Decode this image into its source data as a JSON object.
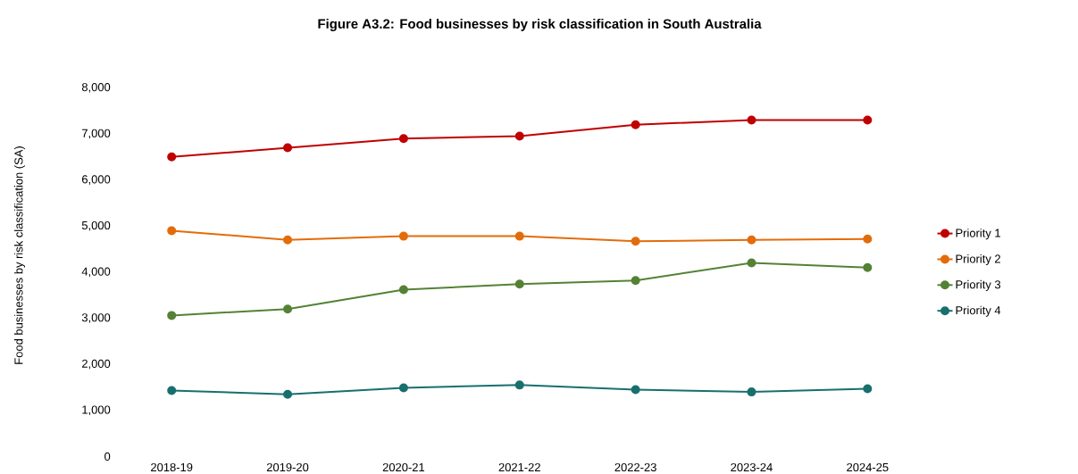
{
  "chart_data": {
    "type": "line",
    "title": "Figure A3.2:  Food businesses by risk classification in South Australia",
    "ylabel": "Food businesses by risk classification (SA)",
    "categories": [
      "2018-19",
      "2019-20",
      "2020-21",
      "2021-22",
      "2022-23",
      "2023-24",
      "2024-25"
    ],
    "series": [
      {
        "name": "Priority 1",
        "color": "#c00000",
        "values": [
          6500,
          6700,
          6900,
          6950,
          7200,
          7300,
          7300
        ]
      },
      {
        "name": "Priority 2",
        "color": "#e36c0a",
        "values": [
          4900,
          4700,
          4780,
          4780,
          4670,
          4700,
          4720
        ]
      },
      {
        "name": "Priority 3",
        "color": "#548235",
        "values": [
          3060,
          3200,
          3620,
          3740,
          3820,
          4200,
          4100
        ]
      },
      {
        "name": "Priority 4",
        "color": "#17706e",
        "values": [
          1430,
          1350,
          1490,
          1550,
          1450,
          1400,
          1470
        ]
      }
    ],
    "ylim": [
      0,
      8000
    ],
    "yticks": [
      {
        "value": 0,
        "label": "0"
      },
      {
        "value": 1000,
        "label": "1,000"
      },
      {
        "value": 2000,
        "label": "2,000"
      },
      {
        "value": 3000,
        "label": "3,000"
      },
      {
        "value": 4000,
        "label": "4,000"
      },
      {
        "value": 5000,
        "label": "5,000"
      },
      {
        "value": 6000,
        "label": "6,000"
      },
      {
        "value": 7000,
        "label": "7,000"
      },
      {
        "value": 8000,
        "label": "8,000"
      }
    ],
    "grid": false,
    "legend": "right",
    "marker": "circle",
    "line_style": "solid"
  }
}
